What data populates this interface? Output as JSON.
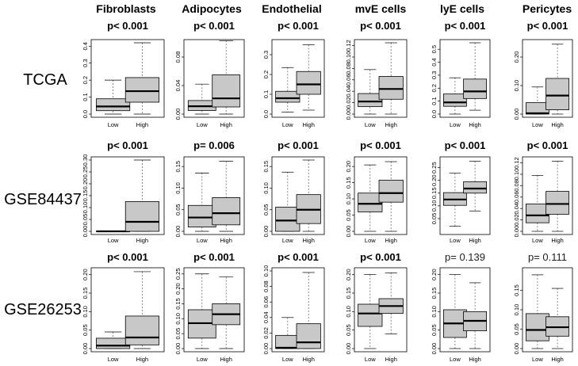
{
  "column_titles": [
    "Fibroblasts",
    "Adipocytes",
    "Endothelial",
    "mvE cells",
    "lyE cells",
    "Pericytes"
  ],
  "row_labels": [
    "TCGA",
    "GSE84437",
    "GSE26253"
  ],
  "colors": {
    "box_fill": "#c8c8c8",
    "stroke": "#000000",
    "whisker": "#555555"
  },
  "chart_data": {
    "type": "boxplot",
    "categories": [
      "Low",
      "High"
    ],
    "panels": [
      {
        "dataset": "TCGA",
        "cell": "Fibroblasts",
        "pvalue": "p< 0.001",
        "bold": true,
        "ylim": [
          0,
          0.42
        ],
        "yticks": [
          0.0,
          0.1,
          0.2,
          0.3,
          0.4
        ],
        "ytick_labels": [
          "0.0",
          "0.1",
          "0.2",
          "0.3",
          "0.4"
        ],
        "boxes": [
          {
            "min": 0.0,
            "q1": 0.02,
            "median": 0.045,
            "q3": 0.09,
            "max": 0.2
          },
          {
            "min": 0.0,
            "q1": 0.07,
            "median": 0.135,
            "q3": 0.215,
            "max": 0.42
          }
        ]
      },
      {
        "dataset": "TCGA",
        "cell": "Adipocytes",
        "pvalue": "p< 0.001",
        "bold": true,
        "ylim": [
          0,
          0.1
        ],
        "yticks": [
          0.0,
          0.04,
          0.08
        ],
        "ytick_labels": [
          "0.00",
          "0.04",
          "0.08"
        ],
        "boxes": [
          {
            "min": 0.0,
            "q1": 0.005,
            "median": 0.011,
            "q3": 0.019,
            "max": 0.042
          },
          {
            "min": 0.0,
            "q1": 0.01,
            "median": 0.022,
            "q3": 0.055,
            "max": 0.103
          }
        ]
      },
      {
        "dataset": "TCGA",
        "cell": "Endothelial",
        "pvalue": "p< 0.001",
        "bold": true,
        "ylim": [
          0,
          0.36
        ],
        "yticks": [
          0.0,
          0.1,
          0.2,
          0.3
        ],
        "ytick_labels": [
          "0.0",
          "0.1",
          "0.2",
          "0.3"
        ],
        "boxes": [
          {
            "min": 0.01,
            "q1": 0.06,
            "median": 0.08,
            "q3": 0.115,
            "max": 0.235
          },
          {
            "min": 0.02,
            "q1": 0.1,
            "median": 0.15,
            "q3": 0.215,
            "max": 0.35
          }
        ]
      },
      {
        "dataset": "TCGA",
        "cell": "mvE cells",
        "pvalue": "p< 0.001",
        "bold": true,
        "ylim": [
          0,
          0.125
        ],
        "yticks": [
          0.0,
          0.02,
          0.04,
          0.06,
          0.08,
          0.1,
          0.12
        ],
        "ytick_labels": [
          "0.00",
          "0.02",
          "0.04",
          "0.06",
          "0.08",
          "0.10",
          "0.12"
        ],
        "boxes": [
          {
            "min": 0.0,
            "q1": 0.013,
            "median": 0.022,
            "q3": 0.036,
            "max": 0.078
          },
          {
            "min": 0.0,
            "q1": 0.026,
            "median": 0.044,
            "q3": 0.066,
            "max": 0.125
          }
        ]
      },
      {
        "dataset": "TCGA",
        "cell": "lyE cells",
        "pvalue": "p< 0.001",
        "bold": true,
        "ylim": [
          0,
          0.55
        ],
        "yticks": [
          0.0,
          0.1,
          0.2,
          0.3,
          0.4,
          0.5
        ],
        "ytick_labels": [
          "0.0",
          "0.1",
          "0.2",
          "0.3",
          "0.4",
          "0.5"
        ],
        "boxes": [
          {
            "min": 0.0,
            "q1": 0.06,
            "median": 0.09,
            "q3": 0.155,
            "max": 0.28
          },
          {
            "min": 0.03,
            "q1": 0.12,
            "median": 0.175,
            "q3": 0.27,
            "max": 0.55
          }
        ]
      },
      {
        "dataset": "TCGA",
        "cell": "Pericytes",
        "pvalue": "p< 0.001",
        "bold": true,
        "ylim": [
          0,
          0.25
        ],
        "yticks": [
          0.0,
          0.1,
          0.2
        ],
        "ytick_labels": [
          "0.00",
          "0.10",
          "0.20"
        ],
        "boxes": [
          {
            "min": 0.0,
            "q1": 0.0,
            "median": 0.003,
            "q3": 0.04,
            "max": 0.095
          },
          {
            "min": 0.0,
            "q1": 0.015,
            "median": 0.065,
            "q3": 0.125,
            "max": 0.245
          }
        ]
      },
      {
        "dataset": "GSE84437",
        "cell": "Fibroblasts",
        "pvalue": "p< 0.001",
        "bold": true,
        "ylim": [
          0,
          0.3
        ],
        "yticks": [
          0.0,
          0.05,
          0.1,
          0.15,
          0.2,
          0.25,
          0.3
        ],
        "ytick_labels": [
          "0.00",
          "0.05",
          "0.10",
          "0.15",
          "0.20",
          "0.25",
          "0.30"
        ],
        "boxes": [
          {
            "min": 0.0,
            "q1": 0.0,
            "median": 0.0,
            "q3": 0.0,
            "max": 0.0
          },
          {
            "min": 0.0,
            "q1": 0.0,
            "median": 0.04,
            "q3": 0.125,
            "max": 0.3
          }
        ]
      },
      {
        "dataset": "GSE84437",
        "cell": "Adipocytes",
        "pvalue": "p= 0.006",
        "bold": true,
        "ylim": [
          0,
          0.165
        ],
        "yticks": [
          0.0,
          0.05,
          0.1,
          0.15
        ],
        "ytick_labels": [
          "0.00",
          "0.05",
          "0.10",
          "0.15"
        ],
        "boxes": [
          {
            "min": 0.0,
            "q1": 0.01,
            "median": 0.032,
            "q3": 0.06,
            "max": 0.135
          },
          {
            "min": 0.0,
            "q1": 0.015,
            "median": 0.042,
            "q3": 0.078,
            "max": 0.162
          }
        ]
      },
      {
        "dataset": "GSE84437",
        "cell": "Endothelial",
        "pvalue": "p< 0.001",
        "bold": true,
        "ylim": [
          0,
          0.165
        ],
        "yticks": [
          0.0,
          0.05,
          0.1,
          0.15
        ],
        "ytick_labels": [
          "0.00",
          "0.05",
          "0.10",
          "0.15"
        ],
        "boxes": [
          {
            "min": 0.0,
            "q1": 0.0,
            "median": 0.025,
            "q3": 0.056,
            "max": 0.137
          },
          {
            "min": 0.0,
            "q1": 0.018,
            "median": 0.05,
            "q3": 0.085,
            "max": 0.165
          }
        ]
      },
      {
        "dataset": "GSE84437",
        "cell": "mvE cells",
        "pvalue": "p< 0.001",
        "bold": true,
        "ylim": [
          0,
          0.22
        ],
        "yticks": [
          0.0,
          0.05,
          0.1,
          0.15,
          0.2
        ],
        "ytick_labels": [
          "0.00",
          "0.05",
          "0.10",
          "0.15",
          "0.20"
        ],
        "boxes": [
          {
            "min": 0.0,
            "q1": 0.06,
            "median": 0.085,
            "q3": 0.118,
            "max": 0.205
          },
          {
            "min": 0.0,
            "q1": 0.09,
            "median": 0.118,
            "q3": 0.158,
            "max": 0.215
          }
        ]
      },
      {
        "dataset": "GSE84437",
        "cell": "lyE cells",
        "pvalue": "p< 0.001",
        "bold": true,
        "ylim": [
          0,
          0.28
        ],
        "yticks": [
          0.05,
          0.1,
          0.15,
          0.2,
          0.25
        ],
        "ytick_labels": [
          "0.05",
          "0.10",
          "0.15",
          "0.20",
          "0.25"
        ],
        "boxes": [
          {
            "min": 0.02,
            "q1": 0.102,
            "median": 0.125,
            "q3": 0.152,
            "max": 0.228
          },
          {
            "min": 0.08,
            "q1": 0.15,
            "median": 0.168,
            "q3": 0.195,
            "max": 0.275
          }
        ]
      },
      {
        "dataset": "GSE84437",
        "cell": "Pericytes",
        "pvalue": "p< 0.001",
        "bold": true,
        "ylim": [
          0,
          0.125
        ],
        "yticks": [
          0.0,
          0.02,
          0.04,
          0.06,
          0.08,
          0.1,
          0.12
        ],
        "ytick_labels": [
          "0.00",
          "0.02",
          "0.04",
          "0.06",
          "0.08",
          "0.10",
          "0.12"
        ],
        "boxes": [
          {
            "min": 0.0,
            "q1": 0.015,
            "median": 0.028,
            "q3": 0.048,
            "max": 0.098
          },
          {
            "min": 0.0,
            "q1": 0.03,
            "median": 0.048,
            "q3": 0.07,
            "max": 0.123
          }
        ]
      },
      {
        "dataset": "GSE26253",
        "cell": "Fibroblasts",
        "pvalue": "p< 0.001",
        "bold": true,
        "ylim": [
          0,
          0.21
        ],
        "yticks": [
          0.0,
          0.05,
          0.1,
          0.15,
          0.2
        ],
        "ytick_labels": [
          "0.00",
          "0.05",
          "0.10",
          "0.15",
          "0.20"
        ],
        "boxes": [
          {
            "min": 0.0,
            "q1": 0.0,
            "median": 0.008,
            "q3": 0.028,
            "max": 0.045
          },
          {
            "min": 0.0,
            "q1": 0.01,
            "median": 0.03,
            "q3": 0.088,
            "max": 0.208
          }
        ]
      },
      {
        "dataset": "GSE26253",
        "cell": "Adipocytes",
        "pvalue": "p< 0.001",
        "bold": true,
        "ylim": [
          0,
          0.26
        ],
        "yticks": [
          0.0,
          0.05,
          0.1,
          0.15,
          0.2,
          0.25
        ],
        "ytick_labels": [
          "0.00",
          "0.05",
          "0.10",
          "0.15",
          "0.20",
          "0.25"
        ],
        "boxes": [
          {
            "min": 0.0,
            "q1": 0.035,
            "median": 0.085,
            "q3": 0.13,
            "max": 0.25
          },
          {
            "min": 0.0,
            "q1": 0.08,
            "median": 0.115,
            "q3": 0.15,
            "max": 0.24
          }
        ]
      },
      {
        "dataset": "GSE26253",
        "cell": "Endothelial",
        "pvalue": "p< 0.001",
        "bold": true,
        "ylim": [
          0,
          0.1
        ],
        "yticks": [
          0.0,
          0.02,
          0.04,
          0.06,
          0.08,
          0.1
        ],
        "ytick_labels": [
          "0.00",
          "0.02",
          "0.04",
          "0.06",
          "0.08",
          "0.10"
        ],
        "boxes": [
          {
            "min": 0.0,
            "q1": 0.0,
            "median": 0.001,
            "q3": 0.017,
            "max": 0.04
          },
          {
            "min": 0.0,
            "q1": 0.0,
            "median": 0.008,
            "q3": 0.032,
            "max": 0.098
          }
        ]
      },
      {
        "dataset": "GSE26253",
        "cell": "mvE cells",
        "pvalue": "p< 0.001",
        "bold": true,
        "ylim": [
          0,
          0.21
        ],
        "yticks": [
          0.0,
          0.05,
          0.1,
          0.15,
          0.2
        ],
        "ytick_labels": [
          "0.00",
          "0.05",
          "0.10",
          "0.15",
          "0.20"
        ],
        "boxes": [
          {
            "min": 0.0,
            "q1": 0.06,
            "median": 0.095,
            "q3": 0.12,
            "max": 0.2
          },
          {
            "min": 0.04,
            "q1": 0.095,
            "median": 0.115,
            "q3": 0.135,
            "max": 0.205
          }
        ]
      },
      {
        "dataset": "GSE26253",
        "cell": "lyE cells",
        "pvalue": "p= 0.139",
        "bold": false,
        "ylim": [
          0,
          0.21
        ],
        "yticks": [
          0.0,
          0.05,
          0.1,
          0.15,
          0.2
        ],
        "ytick_labels": [
          "0.00",
          "0.05",
          "0.10",
          "0.15",
          "0.20"
        ],
        "boxes": [
          {
            "min": 0.0,
            "q1": 0.03,
            "median": 0.068,
            "q3": 0.105,
            "max": 0.2
          },
          {
            "min": 0.0,
            "q1": 0.048,
            "median": 0.075,
            "q3": 0.1,
            "max": 0.178
          }
        ]
      },
      {
        "dataset": "GSE26253",
        "cell": "Pericytes",
        "pvalue": "p= 0.111",
        "bold": false,
        "ylim": [
          0,
          0.2
        ],
        "yticks": [
          0.0,
          0.05,
          0.1,
          0.15
        ],
        "ytick_labels": [
          "0.00",
          "0.05",
          "0.10",
          "0.15"
        ],
        "boxes": [
          {
            "min": 0.0,
            "q1": 0.02,
            "median": 0.048,
            "q3": 0.09,
            "max": 0.19
          },
          {
            "min": 0.0,
            "q1": 0.032,
            "median": 0.055,
            "q3": 0.082,
            "max": 0.155
          }
        ]
      }
    ]
  }
}
